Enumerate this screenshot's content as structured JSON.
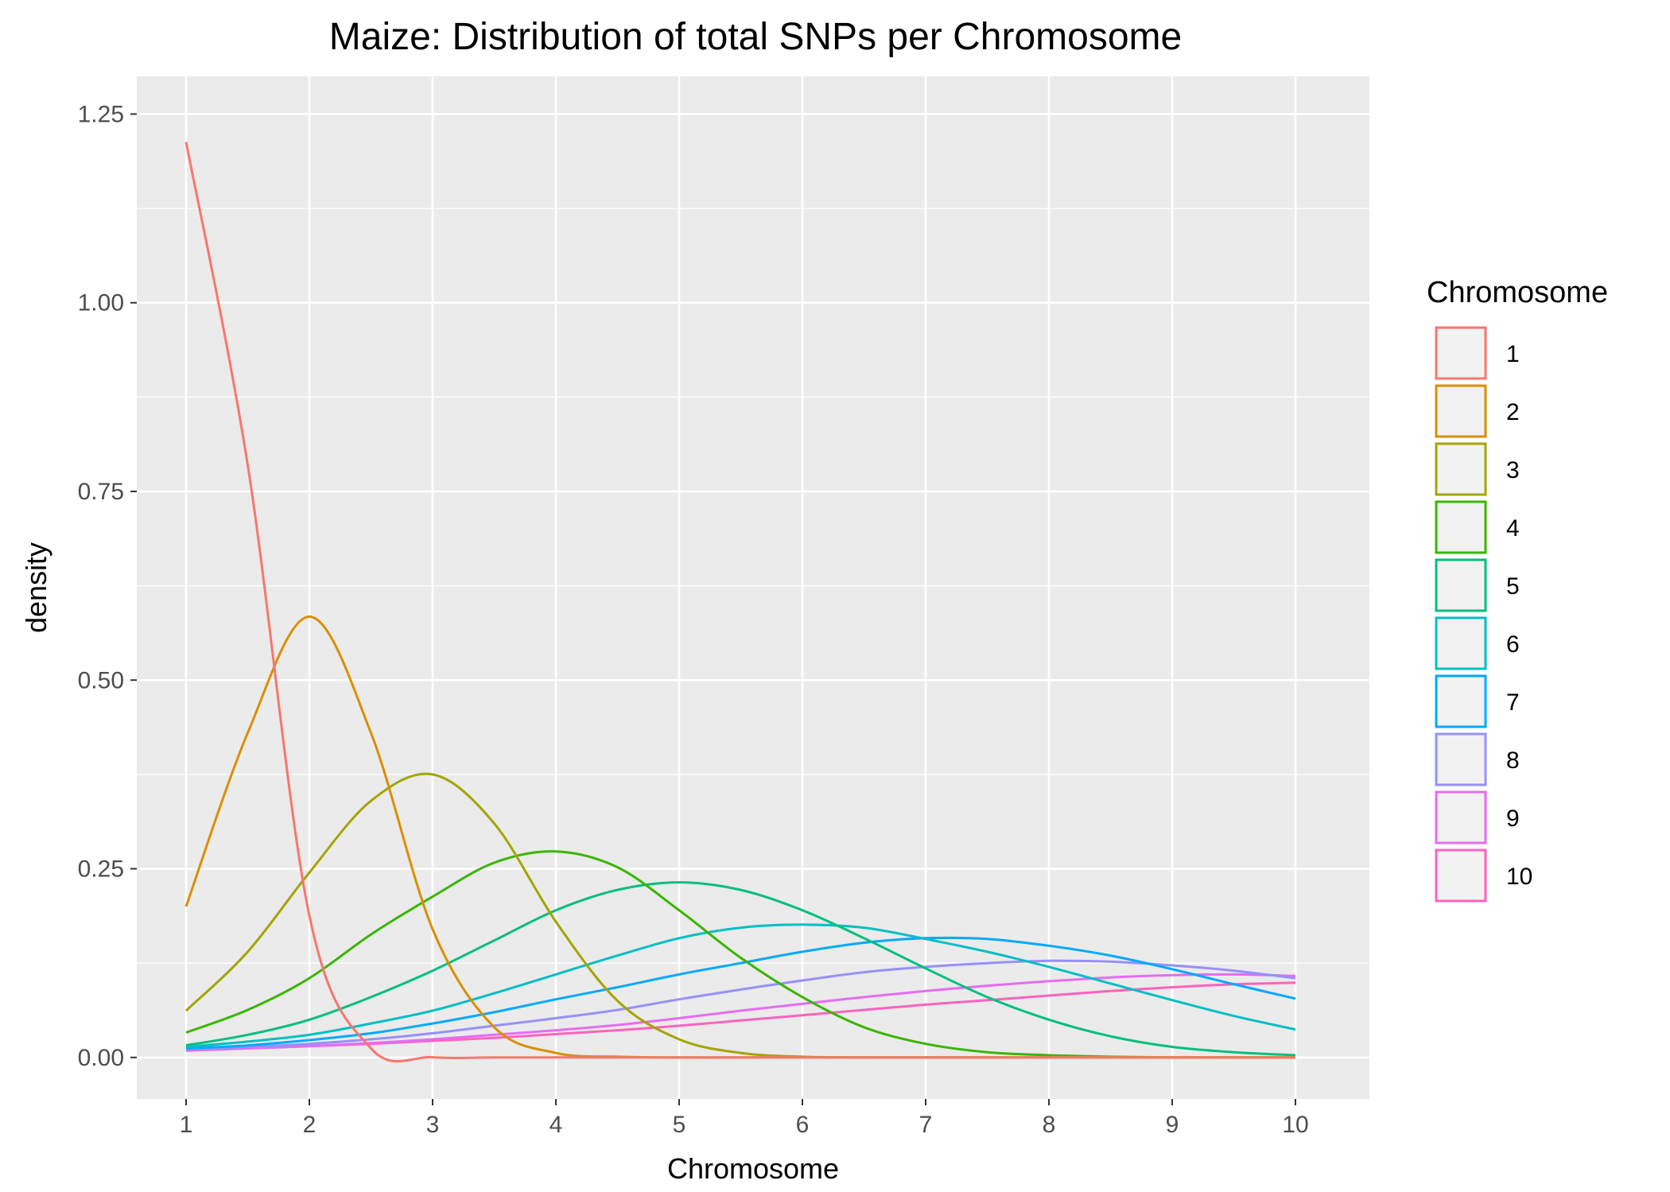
{
  "chart_data": {
    "type": "line",
    "title": "Maize: Distribution of total SNPs per Chromosome",
    "xlabel": "Chromosome",
    "ylabel": "density",
    "xlim": [
      0.6,
      10.6
    ],
    "ylim": [
      -0.055,
      1.3
    ],
    "x_ticks": [
      "1",
      "2",
      "3",
      "4",
      "5",
      "6",
      "7",
      "8",
      "9",
      "10"
    ],
    "y_ticks": [
      "0.00",
      "0.25",
      "0.50",
      "0.75",
      "1.00",
      "1.25"
    ],
    "grid": true,
    "legend": {
      "title": "Chromosome",
      "position": "right"
    },
    "series": [
      {
        "name": "1",
        "color": "#F8766D",
        "values": [
          1.213,
          0.785,
          0.188,
          0.012,
          0.0003,
          0,
          0,
          0,
          0,
          0,
          0,
          0,
          0,
          0,
          0,
          0,
          0,
          0,
          0
        ]
      },
      {
        "name": "2",
        "color": "#D89000",
        "values": [
          0.2,
          0.43,
          0.584,
          0.43,
          0.17,
          0.04,
          0.006,
          0.001,
          0,
          0,
          0,
          0,
          0,
          0,
          0,
          0,
          0,
          0,
          0
        ]
      },
      {
        "name": "3",
        "color": "#A3A500",
        "values": [
          0.062,
          0.14,
          0.245,
          0.34,
          0.375,
          0.31,
          0.18,
          0.075,
          0.024,
          0.006,
          0.001,
          0,
          0,
          0,
          0,
          0,
          0,
          0,
          0
        ]
      },
      {
        "name": "4",
        "color": "#39B600",
        "values": [
          0.033,
          0.063,
          0.105,
          0.163,
          0.213,
          0.258,
          0.273,
          0.252,
          0.195,
          0.132,
          0.08,
          0.04,
          0.018,
          0.007,
          0.003,
          0.001,
          0,
          0,
          0
        ]
      },
      {
        "name": "5",
        "color": "#00BF7D",
        "values": [
          0.016,
          0.03,
          0.05,
          0.08,
          0.115,
          0.155,
          0.195,
          0.222,
          0.232,
          0.222,
          0.195,
          0.158,
          0.118,
          0.08,
          0.05,
          0.028,
          0.014,
          0.007,
          0.003
        ]
      },
      {
        "name": "6",
        "color": "#00BFC4",
        "values": [
          0.014,
          0.021,
          0.03,
          0.045,
          0.062,
          0.085,
          0.11,
          0.135,
          0.158,
          0.172,
          0.176,
          0.172,
          0.157,
          0.14,
          0.12,
          0.098,
          0.076,
          0.055,
          0.037
        ]
      },
      {
        "name": "7",
        "color": "#00A9FF",
        "values": [
          0.012,
          0.016,
          0.023,
          0.032,
          0.045,
          0.06,
          0.077,
          0.093,
          0.11,
          0.125,
          0.14,
          0.152,
          0.158,
          0.157,
          0.148,
          0.135,
          0.117,
          0.097,
          0.078
        ]
      },
      {
        "name": "8",
        "color": "#9590FF",
        "values": [
          0.011,
          0.014,
          0.018,
          0.024,
          0.032,
          0.042,
          0.052,
          0.063,
          0.077,
          0.09,
          0.102,
          0.113,
          0.12,
          0.125,
          0.128,
          0.127,
          0.122,
          0.115,
          0.105
        ]
      },
      {
        "name": "9",
        "color": "#E76BF3",
        "values": [
          0.01,
          0.012,
          0.015,
          0.019,
          0.024,
          0.03,
          0.036,
          0.043,
          0.052,
          0.062,
          0.071,
          0.08,
          0.088,
          0.095,
          0.101,
          0.106,
          0.109,
          0.11,
          0.108
        ]
      },
      {
        "name": "10",
        "color": "#FF62BC",
        "values": [
          0.009,
          0.012,
          0.015,
          0.018,
          0.022,
          0.026,
          0.031,
          0.036,
          0.042,
          0.049,
          0.056,
          0.063,
          0.07,
          0.076,
          0.082,
          0.088,
          0.093,
          0.097,
          0.099
        ]
      }
    ],
    "x": [
      1.0,
      1.5,
      2.0,
      2.5,
      3.0,
      3.5,
      4.0,
      4.5,
      5.0,
      5.5,
      6.0,
      6.5,
      7.0,
      7.5,
      8.0,
      8.5,
      9.0,
      9.5,
      10.0
    ]
  },
  "colors": {
    "panel_background": "#EBEBEB",
    "grid_major": "#FFFFFF",
    "legend_key_fill": "#F2F2F2"
  }
}
